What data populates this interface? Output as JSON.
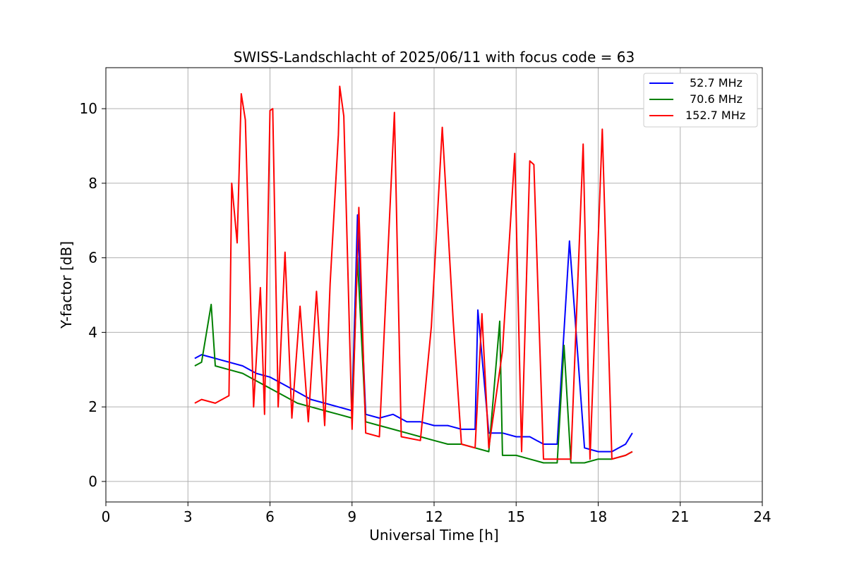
{
  "chart_data": {
    "type": "line",
    "title": "SWISS-Landschlacht of 2025/06/11 with focus code = 63",
    "xlabel": "Universal Time [h]",
    "ylabel": "Y-factor [dB]",
    "xlim": [
      0,
      24
    ],
    "ylim": [
      -0.55,
      11.1
    ],
    "xticks": [
      0,
      3,
      6,
      9,
      12,
      15,
      18,
      21,
      24
    ],
    "yticks": [
      0,
      2,
      4,
      6,
      8,
      10
    ],
    "grid": true,
    "legend_position": "top-right",
    "series": [
      {
        "name": "52.7 MHz",
        "color": "#0000ff",
        "x": [
          3.25,
          3.5,
          4.0,
          4.5,
          5.0,
          5.5,
          6.0,
          6.5,
          7.0,
          7.5,
          8.0,
          8.5,
          9.0,
          9.2,
          9.5,
          10.0,
          10.5,
          11.0,
          11.5,
          12.0,
          12.5,
          13.0,
          13.5,
          13.6,
          14.0,
          14.5,
          15.0,
          15.5,
          16.0,
          16.5,
          16.95,
          17.5,
          18.0,
          18.5,
          19.0,
          19.25
        ],
        "y": [
          3.3,
          3.4,
          3.3,
          3.2,
          3.1,
          2.9,
          2.8,
          2.6,
          2.4,
          2.2,
          2.1,
          2.0,
          1.9,
          7.15,
          1.8,
          1.7,
          1.8,
          1.6,
          1.6,
          1.5,
          1.5,
          1.4,
          1.4,
          4.6,
          1.3,
          1.3,
          1.2,
          1.2,
          1.0,
          1.0,
          6.45,
          0.9,
          0.8,
          0.8,
          1.0,
          1.3
        ]
      },
      {
        "name": "70.6 MHz",
        "color": "#008000",
        "x": [
          3.25,
          3.5,
          3.85,
          4.0,
          4.5,
          5.0,
          5.5,
          6.0,
          6.5,
          7.0,
          7.5,
          8.0,
          8.5,
          9.0,
          9.2,
          9.5,
          10.0,
          10.5,
          11.0,
          11.5,
          12.0,
          12.5,
          13.0,
          13.5,
          14.0,
          14.4,
          14.5,
          15.0,
          15.5,
          16.0,
          16.5,
          16.75,
          17.0,
          17.5,
          18.0,
          18.5,
          19.0,
          19.25
        ],
        "y": [
          3.1,
          3.2,
          4.75,
          3.1,
          3.0,
          2.9,
          2.7,
          2.5,
          2.3,
          2.1,
          2.0,
          1.9,
          1.8,
          1.7,
          6.0,
          1.6,
          1.5,
          1.4,
          1.3,
          1.2,
          1.1,
          1.0,
          1.0,
          0.9,
          0.8,
          4.3,
          0.7,
          0.7,
          0.6,
          0.5,
          0.5,
          3.65,
          0.5,
          0.5,
          0.6,
          0.6,
          0.7,
          0.8
        ]
      },
      {
        "name": "152.7 MHz",
        "color": "#ff0000",
        "x": [
          3.25,
          3.5,
          4.0,
          4.5,
          4.6,
          4.8,
          4.95,
          5.1,
          5.4,
          5.65,
          5.8,
          6.0,
          6.1,
          6.3,
          6.55,
          6.8,
          7.1,
          7.4,
          7.7,
          8.0,
          8.2,
          8.5,
          8.55,
          8.7,
          9.0,
          9.25,
          9.5,
          10.0,
          10.55,
          10.8,
          11.5,
          11.9,
          12.3,
          12.7,
          13.0,
          13.5,
          13.75,
          14.0,
          14.5,
          14.95,
          15.2,
          15.5,
          15.65,
          16.0,
          16.5,
          17.0,
          17.45,
          17.7,
          18.15,
          18.5,
          19.0,
          19.25
        ],
        "y": [
          2.1,
          2.2,
          2.1,
          2.3,
          8.0,
          6.4,
          10.4,
          9.7,
          2.0,
          5.2,
          1.8,
          9.95,
          10.0,
          2.0,
          6.15,
          1.7,
          4.7,
          1.6,
          5.1,
          1.5,
          5.3,
          9.3,
          10.6,
          9.8,
          1.4,
          7.35,
          1.3,
          1.2,
          9.9,
          1.2,
          1.1,
          4.15,
          9.5,
          4.3,
          1.0,
          0.9,
          4.5,
          0.9,
          3.5,
          8.8,
          0.8,
          8.6,
          8.5,
          0.6,
          0.6,
          0.6,
          9.05,
          0.6,
          9.45,
          0.6,
          0.7,
          0.8
        ]
      }
    ]
  }
}
